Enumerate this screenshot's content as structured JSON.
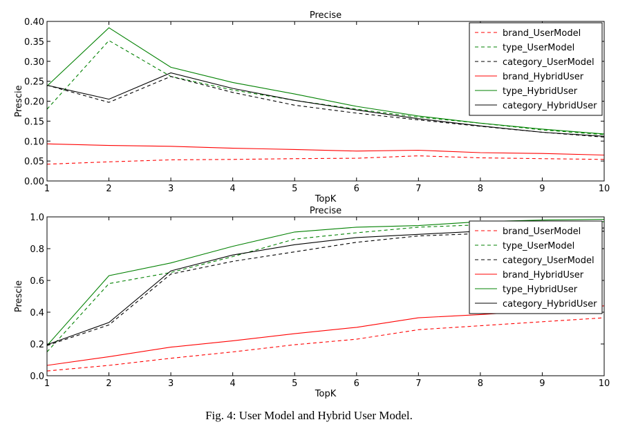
{
  "caption": "Fig. 4: User Model and Hybrid User Model.",
  "chart_data": [
    {
      "type": "line",
      "title": "Precise",
      "xlabel": "TopK",
      "ylabel": "Prescie",
      "xlim": [
        1,
        10
      ],
      "ylim": [
        0,
        0.4
      ],
      "x": [
        1,
        2,
        3,
        4,
        5,
        6,
        7,
        8,
        9,
        10
      ],
      "xticks": [
        "1",
        "2",
        "3",
        "4",
        "5",
        "6",
        "7",
        "8",
        "9",
        "10"
      ],
      "yticks": [
        "0.00",
        "0.05",
        "0.10",
        "0.15",
        "0.20",
        "0.25",
        "0.30",
        "0.35",
        "0.40"
      ],
      "ytick_values": [
        0,
        0.05,
        0.1,
        0.15,
        0.2,
        0.25,
        0.3,
        0.35,
        0.4
      ],
      "grid": false,
      "legend_position": "top-right",
      "series": [
        {
          "name": "brand_UserModel",
          "color": "#ff0000",
          "dash": true,
          "values": [
            0.042,
            0.048,
            0.053,
            0.054,
            0.056,
            0.057,
            0.063,
            0.058,
            0.056,
            0.054
          ]
        },
        {
          "name": "type_UserModel",
          "color": "#008000",
          "dash": true,
          "values": [
            0.18,
            0.352,
            0.262,
            0.228,
            0.202,
            0.18,
            0.16,
            0.145,
            0.128,
            0.116
          ]
        },
        {
          "name": "category_UserModel",
          "color": "#000000",
          "dash": true,
          "values": [
            0.24,
            0.197,
            0.262,
            0.222,
            0.19,
            0.17,
            0.153,
            0.137,
            0.122,
            0.11
          ]
        },
        {
          "name": "brand_HybridUser",
          "color": "#ff0000",
          "dash": false,
          "values": [
            0.093,
            0.089,
            0.087,
            0.082,
            0.079,
            0.075,
            0.077,
            0.071,
            0.069,
            0.065
          ]
        },
        {
          "name": "type_HybridUser",
          "color": "#008000",
          "dash": false,
          "values": [
            0.238,
            0.384,
            0.285,
            0.247,
            0.218,
            0.187,
            0.163,
            0.145,
            0.13,
            0.118
          ]
        },
        {
          "name": "category_HybridUser",
          "color": "#000000",
          "dash": false,
          "values": [
            0.24,
            0.205,
            0.271,
            0.232,
            0.202,
            0.178,
            0.156,
            0.138,
            0.122,
            0.112
          ]
        }
      ]
    },
    {
      "type": "line",
      "title": "Precise",
      "xlabel": "TopK",
      "ylabel": "Prescie",
      "xlim": [
        1,
        10
      ],
      "ylim": [
        0,
        1.0
      ],
      "x": [
        1,
        2,
        3,
        4,
        5,
        6,
        7,
        8,
        9,
        10
      ],
      "xticks": [
        "1",
        "2",
        "3",
        "4",
        "5",
        "6",
        "7",
        "8",
        "9",
        "10"
      ],
      "yticks": [
        "0.0",
        "0.2",
        "0.4",
        "0.6",
        "0.8",
        "1.0"
      ],
      "ytick_values": [
        0,
        0.2,
        0.4,
        0.6,
        0.8,
        1.0
      ],
      "grid": false,
      "legend_position": "top-right",
      "series": [
        {
          "name": "brand_UserModel",
          "color": "#ff0000",
          "dash": true,
          "values": [
            0.03,
            0.065,
            0.11,
            0.15,
            0.195,
            0.23,
            0.29,
            0.315,
            0.34,
            0.365
          ]
        },
        {
          "name": "type_UserModel",
          "color": "#008000",
          "dash": true,
          "values": [
            0.15,
            0.58,
            0.65,
            0.75,
            0.86,
            0.9,
            0.935,
            0.95,
            0.96,
            0.97
          ]
        },
        {
          "name": "category_UserModel",
          "color": "#000000",
          "dash": true,
          "values": [
            0.19,
            0.32,
            0.64,
            0.72,
            0.78,
            0.84,
            0.88,
            0.895,
            0.9,
            0.91
          ]
        },
        {
          "name": "brand_HybridUser",
          "color": "#ff0000",
          "dash": false,
          "values": [
            0.065,
            0.12,
            0.18,
            0.22,
            0.265,
            0.305,
            0.365,
            0.385,
            0.41,
            0.44
          ]
        },
        {
          "name": "type_HybridUser",
          "color": "#008000",
          "dash": false,
          "values": [
            0.19,
            0.63,
            0.71,
            0.815,
            0.905,
            0.935,
            0.945,
            0.97,
            0.98,
            0.985
          ]
        },
        {
          "name": "category_HybridUser",
          "color": "#000000",
          "dash": false,
          "values": [
            0.195,
            0.335,
            0.66,
            0.76,
            0.825,
            0.87,
            0.89,
            0.91,
            0.915,
            0.93
          ]
        }
      ]
    }
  ]
}
